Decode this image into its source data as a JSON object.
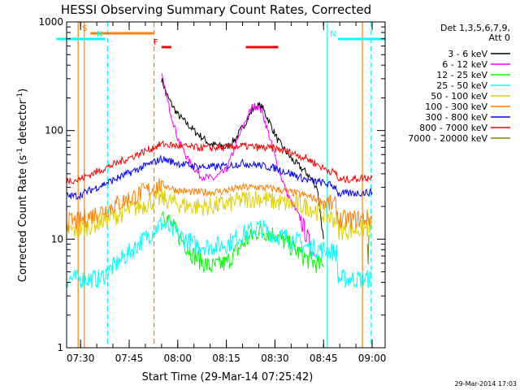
{
  "chart_data": {
    "type": "line",
    "title": "HESSI Observing Summary Count Rates, Corrected",
    "xlabel": "Start Time (29-Mar-14 07:25:42)",
    "ylabel": "Corrected Count Rate (s",
    "ylabel_sup": "-1",
    "ylabel_tail": " detector",
    "ylabel_sup2": "-1",
    "ylabel_end": ")",
    "y_scale": "log",
    "ylim": [
      1,
      1000
    ],
    "xlim": [
      "07:25:42",
      "09:04:00"
    ],
    "x_ticks": [
      "07:30",
      "07:45",
      "08:00",
      "08:15",
      "08:30",
      "08:45",
      "09:00"
    ],
    "y_ticks": [
      "1",
      "10",
      "100",
      "1000"
    ],
    "legend_title": "Det 1,3,5,6,7,9,",
    "legend_subtitle": "Att 0",
    "legend_position": "right",
    "footer_stamp": "29-Mar-2014 17:03",
    "series": [
      {
        "name": "3 - 6 keV",
        "color": "#000000",
        "x": [
          "07:55:00",
          "07:57:00",
          "08:00:00",
          "08:05:00",
          "08:10:00",
          "08:15:00",
          "08:18:00",
          "08:21:00",
          "08:23:00",
          "08:24:30",
          "08:26:00",
          "08:28:00",
          "08:31:00",
          "08:35:00",
          "08:40:00",
          "08:43:00",
          "08:45:00"
        ],
        "y": [
          300,
          200,
          140,
          100,
          75,
          70,
          85,
          120,
          155,
          170,
          165,
          125,
          80,
          55,
          40,
          30,
          10
        ]
      },
      {
        "name": "6 - 12 keV",
        "color": "#ff00ff",
        "x": [
          "07:55:00",
          "07:57:00",
          "08:00:00",
          "08:03:00",
          "08:07:00",
          "08:11:00",
          "08:15:00",
          "08:18:00",
          "08:21:00",
          "08:23:00",
          "08:24:30",
          "08:26:00",
          "08:28:00",
          "08:31:00",
          "08:34:00",
          "08:38:00",
          "08:42:00"
        ],
        "y": [
          320,
          180,
          85,
          55,
          38,
          36,
          43,
          75,
          125,
          165,
          170,
          150,
          95,
          45,
          25,
          15,
          7
        ]
      },
      {
        "name": "12 - 25 keV",
        "color": "#00ff00",
        "x": [
          "07:55:00",
          "08:00:00",
          "08:05:00",
          "08:10:00",
          "08:15:00",
          "08:20:00",
          "08:25:00",
          "08:30:00",
          "08:35:00",
          "08:40:00",
          "08:45:00"
        ],
        "y": [
          19,
          11,
          7,
          5.5,
          6,
          9,
          12,
          11,
          8.5,
          6.5,
          5.5
        ]
      },
      {
        "name": "25 - 50 keV",
        "color": "#00ffff",
        "x": [
          "07:22:30",
          "07:29:00",
          "07:29:30",
          "07:36:00",
          "07:55:00",
          "08:00:00",
          "08:05:00",
          "08:10:00",
          "08:15:00",
          "08:20:00",
          "08:25:00",
          "08:30:00",
          "08:35:00",
          "08:40:00",
          "08:45:00",
          "08:49:00",
          "08:49:30",
          "09:00:00"
        ],
        "y": [
          4.3,
          4.3,
          4.3,
          4.3,
          14,
          11,
          9,
          8.5,
          9,
          11,
          13,
          11,
          10,
          8.5,
          8,
          7.5,
          4.3,
          4.3
        ]
      },
      {
        "name": "50 - 100 keV",
        "color": "#dfd000",
        "x": [
          "07:22:30",
          "07:29:00",
          "07:55:00",
          "08:00:00",
          "08:05:00",
          "08:10:00",
          "08:15:00",
          "08:20:00",
          "08:25:00",
          "08:30:00",
          "08:35:00",
          "08:40:00",
          "08:45:00",
          "08:49:00",
          "08:49:30",
          "09:00:00"
        ],
        "y": [
          12,
          12,
          24,
          21,
          20,
          20,
          21,
          23,
          24,
          22,
          21,
          20,
          17,
          15,
          12,
          12.5
        ]
      },
      {
        "name": "100 - 300 keV",
        "color": "#ff7f00",
        "x": [
          "07:22:30",
          "07:29:00",
          "07:55:00",
          "08:00:00",
          "08:05:00",
          "08:10:00",
          "08:15:00",
          "08:20:00",
          "08:25:00",
          "08:30:00",
          "08:35:00",
          "08:40:00",
          "08:45:00",
          "08:49:00",
          "08:49:30",
          "09:00:00"
        ],
        "y": [
          14.5,
          14.5,
          32,
          28,
          27,
          27,
          28,
          30,
          30,
          29,
          27,
          25,
          22,
          20,
          15,
          15.5
        ]
      },
      {
        "name": "300 - 800 keV",
        "color": "#0000ff",
        "x": [
          "07:22:30",
          "07:29:00",
          "07:55:00",
          "08:00:00",
          "08:05:00",
          "08:10:00",
          "08:15:00",
          "08:20:00",
          "08:25:00",
          "08:30:00",
          "08:35:00",
          "08:40:00",
          "08:45:00",
          "08:49:00",
          "08:49:30",
          "09:00:00"
        ],
        "y": [
          25,
          25,
          55,
          50,
          47,
          46,
          47,
          50,
          48,
          45,
          40,
          35,
          33,
          30,
          26,
          27
        ]
      },
      {
        "name": "800 - 7000 keV",
        "color": "#ff0000",
        "x": [
          "07:22:30",
          "07:29:00",
          "07:55:00",
          "08:00:00",
          "08:05:00",
          "08:10:00",
          "08:15:00",
          "08:20:00",
          "08:25:00",
          "08:30:00",
          "08:35:00",
          "08:40:00",
          "08:45:00",
          "08:49:00",
          "08:49:30",
          "09:00:00"
        ],
        "y": [
          35,
          35,
          75,
          72,
          70,
          69,
          70,
          72,
          70,
          68,
          63,
          55,
          45,
          40,
          35,
          37
        ]
      },
      {
        "name": "7000 - 20000 keV",
        "color": "#808000",
        "x": [
          "08:58:30",
          "08:58:45",
          "08:59:00"
        ],
        "y": [
          11,
          7,
          11
        ]
      }
    ],
    "flags": [
      {
        "label": "S",
        "color": "#ff7f00",
        "start": "07:33:00",
        "end": "07:52:30"
      },
      {
        "label": "N",
        "color": "#00ffff",
        "start": "07:22:30",
        "end": "07:37:30"
      },
      {
        "label": "N",
        "color": "#00ffff",
        "start": "08:49:30",
        "end": "09:04:00"
      },
      {
        "label": "F",
        "color": "#ff0000",
        "start": "07:55:00",
        "end": "07:58:00"
      },
      {
        "label": "",
        "color": "#ff0000",
        "start": "08:21:00",
        "end": "08:31:00"
      }
    ],
    "vlines": [
      {
        "t": "07:31:10",
        "color": "#ff7f00",
        "style": "solid"
      },
      {
        "t": "07:29:15",
        "color": "#ff7f00",
        "style": "solid"
      },
      {
        "t": "07:38:20",
        "color": "#00ffff",
        "style": "dashed"
      },
      {
        "t": "07:52:40",
        "color": "#ff7f00",
        "style": "dashed"
      },
      {
        "t": "08:46:10",
        "color": "#00ffff",
        "style": "solid"
      },
      {
        "t": "08:59:40",
        "color": "#00ffff",
        "style": "dashed"
      },
      {
        "t": "08:57:00",
        "color": "#ff7f00",
        "style": "solid"
      }
    ]
  }
}
